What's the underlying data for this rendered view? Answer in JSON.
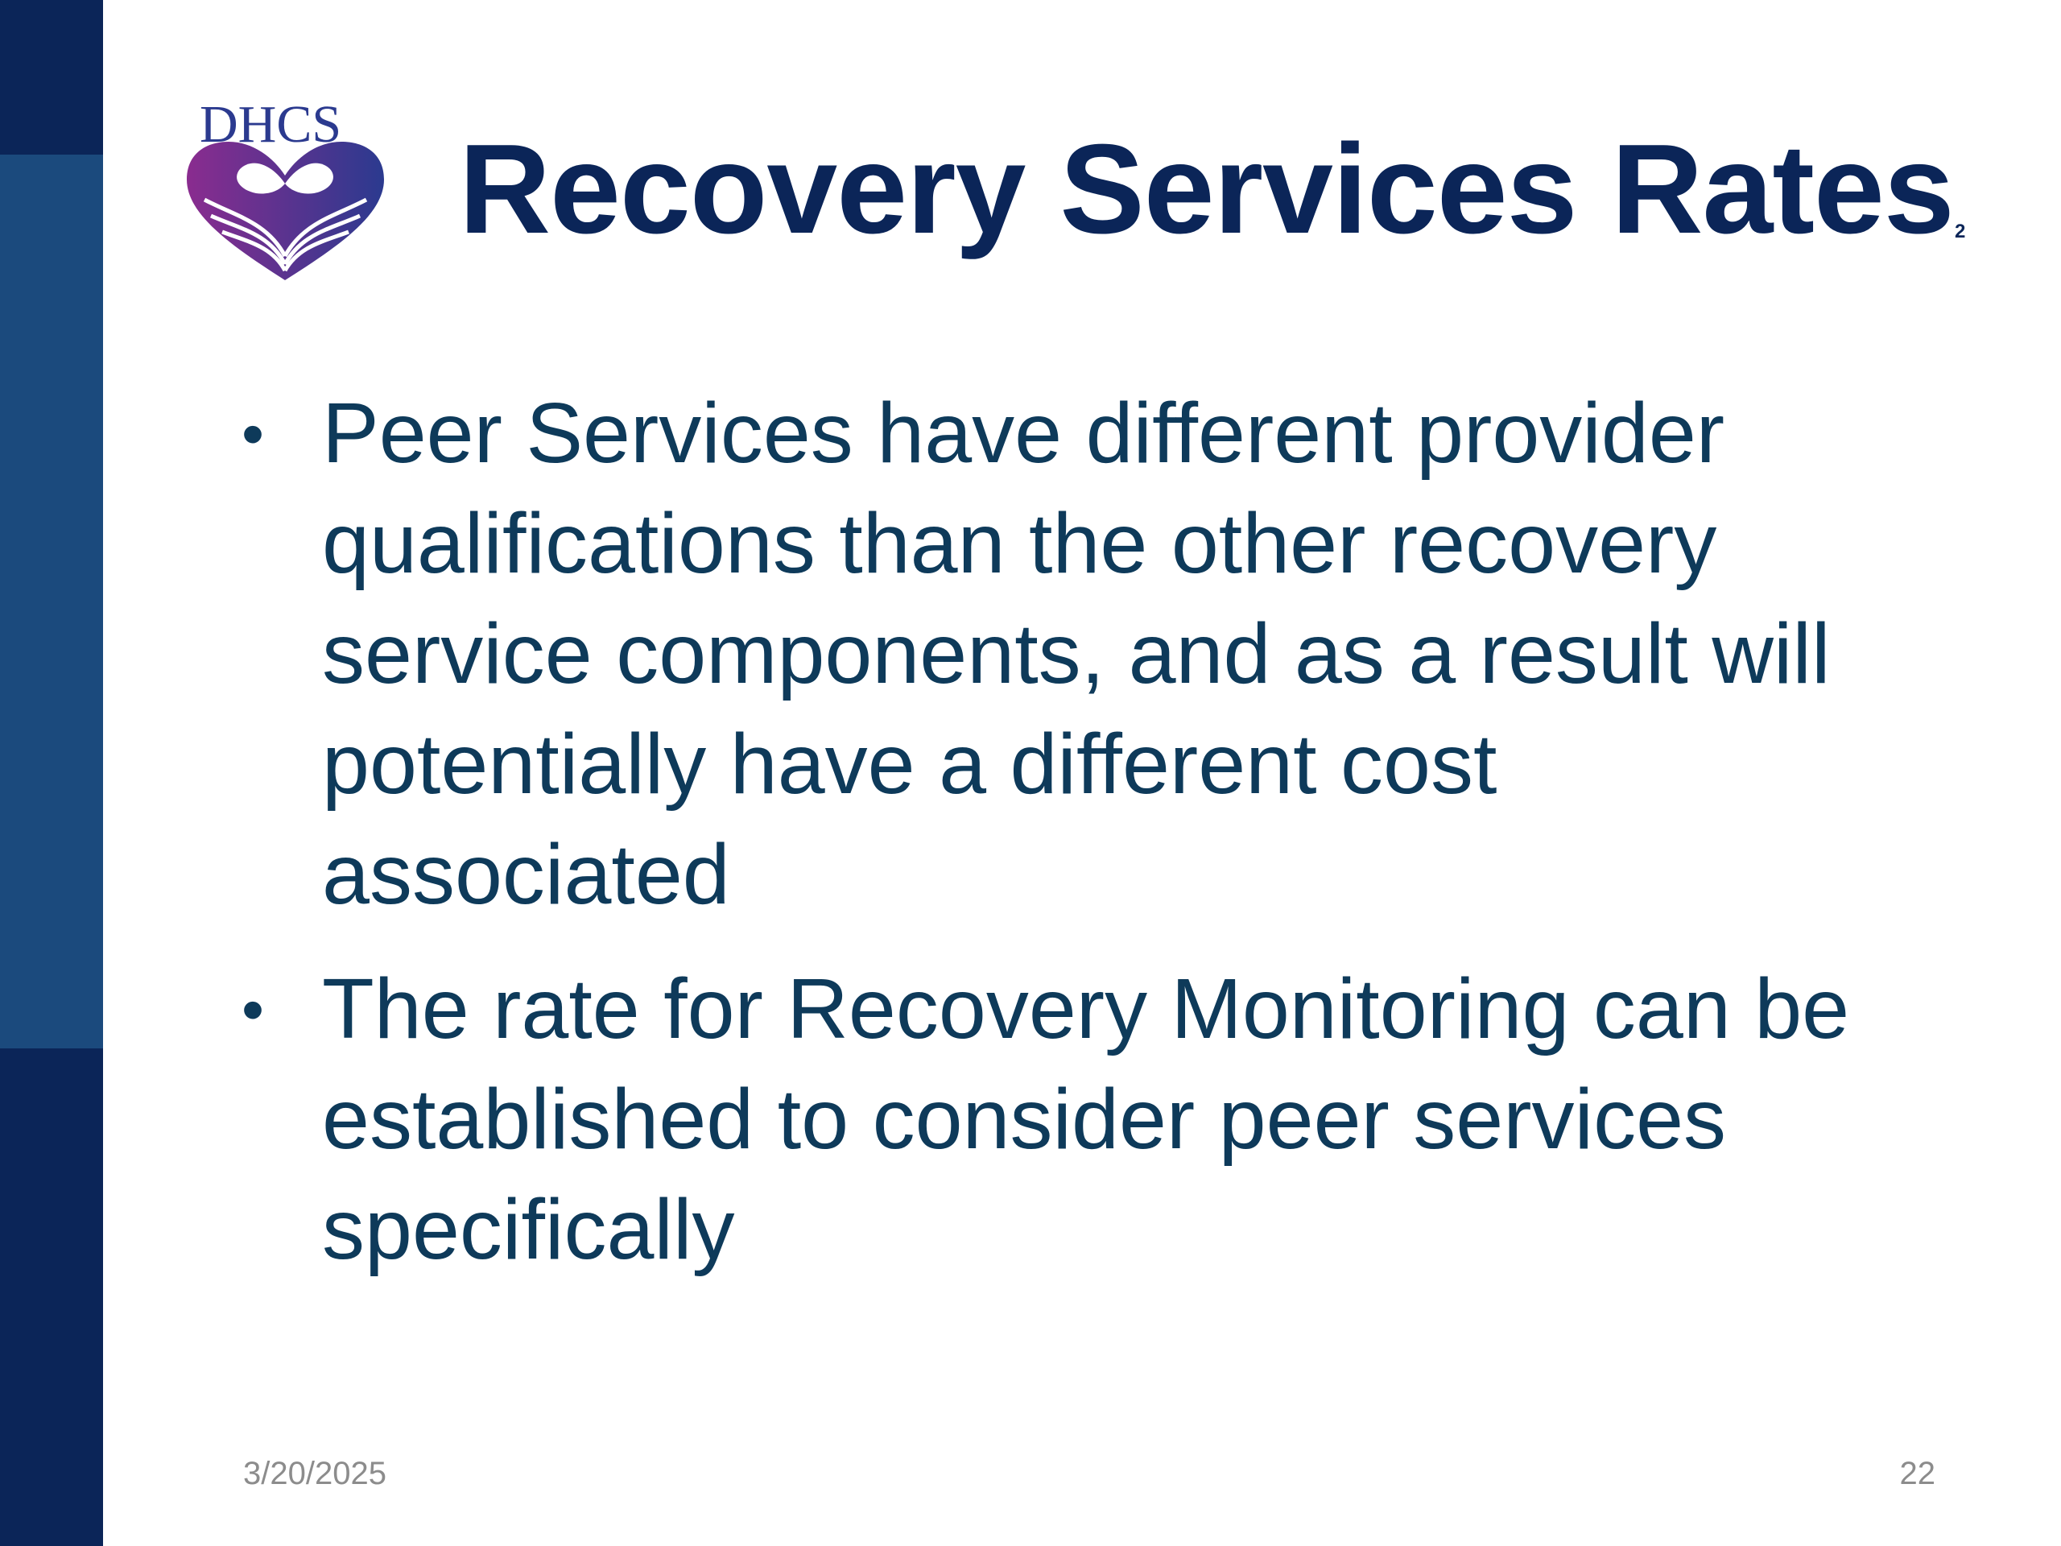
{
  "slide": {
    "logo_text": "DHCS",
    "title": "Recovery Services Rates",
    "title_superscript": "2",
    "bullets": [
      "Peer Services have different provider qualifications than the other recovery service components, and as a result will potentially have a different cost associated",
      "The rate for Recovery Monitoring can be established to consider peer services specifically"
    ],
    "bullet_symbol": "•",
    "footer_date": "3/20/2025",
    "page_number": "22"
  },
  "colors": {
    "sidebar_dark": "#0b2558",
    "sidebar_band": "#1b4a7d",
    "title": "#0b2558",
    "body_text": "#0e3a5a",
    "footer_text": "#8c8c8c",
    "logo_purple": "#7b2d8e",
    "logo_blue": "#2b3a8f"
  },
  "icons": {
    "logo": "dhcs-heart-hands-logo-icon"
  }
}
